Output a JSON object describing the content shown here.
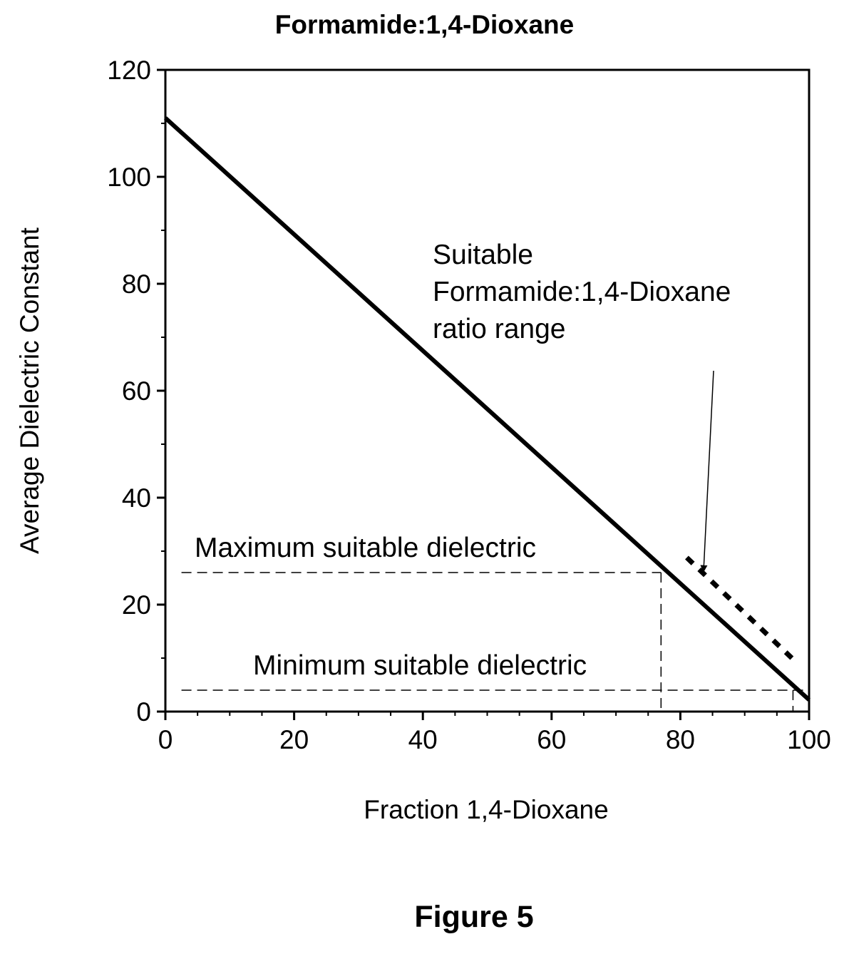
{
  "chart_data": {
    "type": "line",
    "title": "Formamide:1,4-Dioxane",
    "xlabel": "Fraction 1,4-Dioxane",
    "ylabel": "Average Dielectric Constant",
    "xlim": [
      0,
      100
    ],
    "ylim": [
      0,
      120
    ],
    "xticks": [
      0,
      20,
      40,
      60,
      80,
      100
    ],
    "yticks": [
      0,
      20,
      40,
      60,
      80,
      100,
      120
    ],
    "grid": false,
    "series": [
      {
        "style": "solid",
        "x": [
          0,
          100
        ],
        "y": [
          111,
          2.2
        ]
      },
      {
        "style": "dotted",
        "x": [
          81,
          97.5
        ],
        "y": [
          28.8,
          9.8
        ]
      }
    ],
    "reference_lines": [
      {
        "label": "Maximum suitable dielectric",
        "y": 26,
        "x_from": 2.5,
        "x_to": 77,
        "x_drop": 77
      },
      {
        "label": "Minimum suitable dielectric",
        "y": 4,
        "x_from": 2.5,
        "x_to": 100,
        "x_drop": 97.5
      }
    ],
    "annotations": [
      {
        "lines": [
          "Suitable",
          "Formamide:1,4-Dioxane",
          "ratio range"
        ],
        "arrow_to": {
          "x": 83.5,
          "y": 25.5
        }
      }
    ]
  },
  "figure_caption": "Figure 5"
}
